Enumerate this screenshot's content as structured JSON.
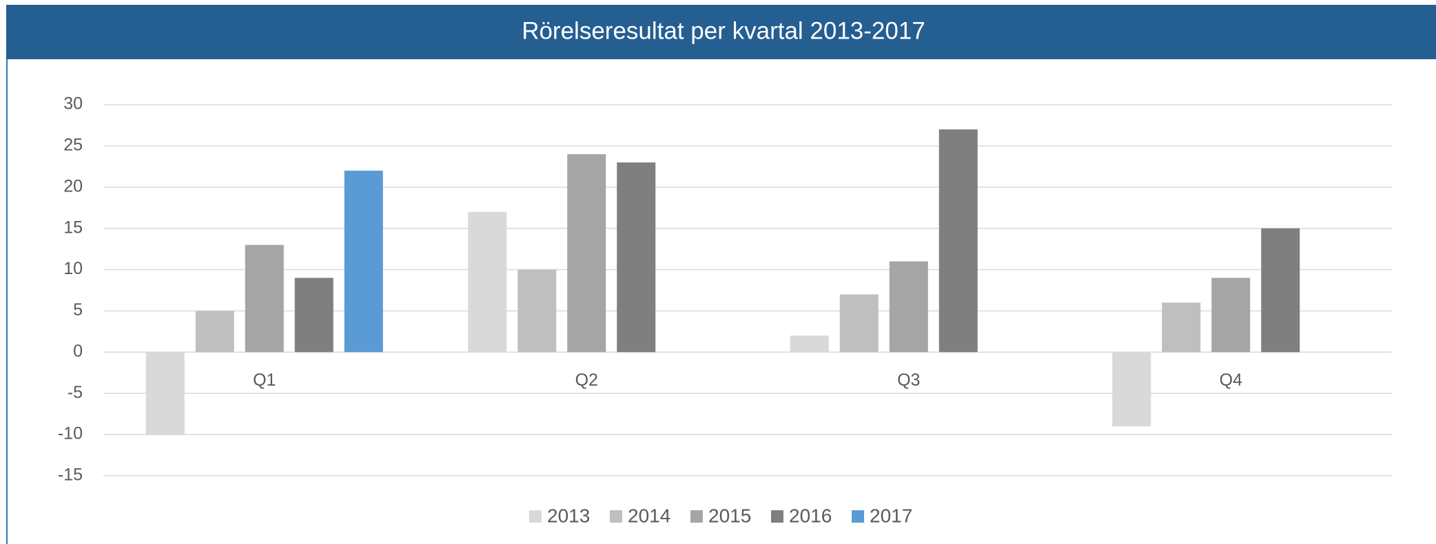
{
  "chart_data": {
    "type": "bar",
    "title": "Rörelseresultat per kvartal 2013-2017",
    "categories": [
      "Q1",
      "Q2",
      "Q3",
      "Q4"
    ],
    "series": [
      {
        "name": "2013",
        "color": "#d9d9d9",
        "values": [
          -10,
          17,
          2,
          -9
        ]
      },
      {
        "name": "2014",
        "color": "#bfbfbf",
        "values": [
          5,
          10,
          7,
          6
        ]
      },
      {
        "name": "2015",
        "color": "#a5a5a5",
        "values": [
          13,
          24,
          11,
          9
        ]
      },
      {
        "name": "2016",
        "color": "#7f7f7f",
        "values": [
          9,
          23,
          27,
          15
        ]
      },
      {
        "name": "2017",
        "color": "#5b9bd5",
        "values": [
          22,
          null,
          null,
          null
        ]
      }
    ],
    "ylim": [
      -15,
      30
    ],
    "yticks": [
      -15,
      -10,
      -5,
      0,
      5,
      10,
      15,
      20,
      25,
      30
    ],
    "grid": true,
    "legend": "bottom"
  }
}
